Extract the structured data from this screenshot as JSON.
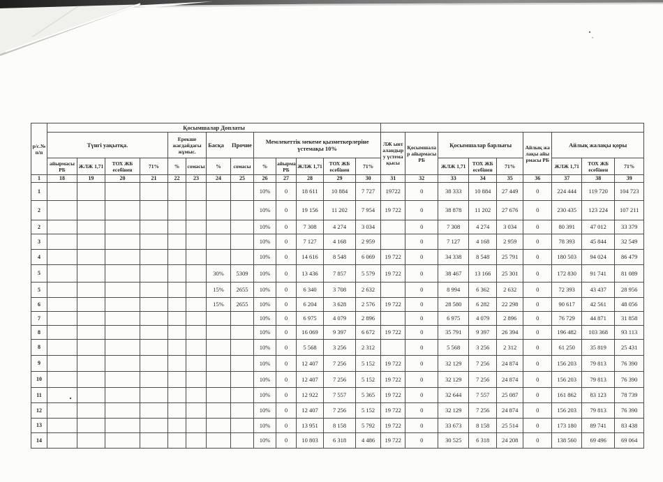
{
  "table": {
    "header": {
      "row_no": "р/с.№ п/п",
      "additions_group": "Қосымшалар Доплаты",
      "night_work": "Түнгі уақытқа.",
      "special_conditions": "Ерекше жағдайдағы жұмыс.",
      "other": "Басқа Прочие",
      "state_bonus": "Мемлекеттік мекеме қызметкерлеріне үстемақы 10%",
      "lj_bonus": "ЛЖ ынталандыру үстемақысы",
      "additions_diff_rb": "Қосымшалар айырмасы РБ",
      "additions_total": "Қосымшалар барлығы",
      "salary_diff_rb": "Айлық жалақы айырмасы РБ",
      "salary_fund": "Айлық жалақы қоры",
      "subheaders": [
        "айырмасы РБ",
        "ЖЛЖ 1,71",
        "ТОХ ЖБ есебінен",
        "71%",
        "%",
        "сомасы",
        "%",
        "сомасы",
        "%",
        "айырмасы РБ",
        "ЖЛЖ 1,71",
        "ТОХ ЖБ есебінен",
        "71%",
        "ЖЛЖ 1,71",
        "ТОХ ЖБ есебінен",
        "71%",
        "ЖЛЖ 1,71",
        "ТОХ ЖБ есебінен",
        "71%"
      ],
      "column_numbers": [
        "1",
        "18",
        "19",
        "20",
        "21",
        "22",
        "23",
        "24",
        "25",
        "26",
        "27",
        "28",
        "29",
        "30",
        "31",
        "32",
        "33",
        "34",
        "35",
        "36",
        "37",
        "38",
        "39"
      ]
    },
    "rows": [
      [
        "1",
        "",
        "",
        "",
        "",
        "",
        "",
        "",
        "",
        "10%",
        "0",
        "18 611",
        "10 884",
        "7 727",
        "19722",
        "0",
        "38 333",
        "10 884",
        "27 449",
        "0",
        "224 444",
        "119 720",
        "104 723"
      ],
      [
        "2",
        "",
        "",
        "",
        "",
        "",
        "",
        "",
        "",
        "10%",
        "0",
        "19 156",
        "11 202",
        "7 954",
        "19 722",
        "0",
        "38 878",
        "11 202",
        "27 676",
        "0",
        "230 435",
        "123 224",
        "107 211"
      ],
      [
        "2",
        "",
        "",
        "",
        "",
        "",
        "",
        "",
        "",
        "10%",
        "0",
        "7 308",
        "4 274",
        "3 034",
        "",
        "0",
        "7 308",
        "4 274",
        "3 034",
        "0",
        "80 391",
        "47 012",
        "33 379"
      ],
      [
        "3",
        "",
        "",
        "",
        "",
        "",
        "",
        "",
        "",
        "10%",
        "0",
        "7 127",
        "4 168",
        "2 959",
        "",
        "0",
        "7 127",
        "4 168",
        "2 959",
        "0",
        "78 393",
        "45 844",
        "32 549"
      ],
      [
        "4",
        "",
        "",
        "",
        "",
        "",
        "",
        "",
        "",
        "10%",
        "0",
        "14 616",
        "8 548",
        "6 069",
        "19 722",
        "0",
        "34 338",
        "8 548",
        "25 791",
        "0",
        "180 503",
        "94 024",
        "86 479"
      ],
      [
        "5",
        "",
        "",
        "",
        "",
        "",
        "",
        "30%",
        "5309",
        "10%",
        "0",
        "13 436",
        "7 857",
        "5 579",
        "19 722",
        "0",
        "38 467",
        "13 166",
        "25 301",
        "0",
        "172 830",
        "91 741",
        "81 089"
      ],
      [
        "5",
        "",
        "",
        "",
        "",
        "",
        "",
        "15%",
        "2655",
        "10%",
        "0",
        "6 340",
        "3 708",
        "2 632",
        "",
        "0",
        "8 994",
        "6 362",
        "2 632",
        "0",
        "72 393",
        "43 437",
        "28 956"
      ],
      [
        "6",
        "",
        "",
        "",
        "",
        "",
        "",
        "15%",
        "2655",
        "10%",
        "0",
        "6 204",
        "3 628",
        "2 576",
        "19 722",
        "0",
        "28 580",
        "6 282",
        "22 298",
        "0",
        "90 617",
        "42 561",
        "48 056"
      ],
      [
        "7",
        "",
        "",
        "",
        "",
        "",
        "",
        "",
        "",
        "10%",
        "0",
        "6 975",
        "4 079",
        "2 896",
        "",
        "0",
        "6 975",
        "4 079",
        "2 896",
        "0",
        "76 729",
        "44 871",
        "31 858"
      ],
      [
        "8",
        "",
        "",
        "",
        "",
        "",
        "",
        "",
        "",
        "10%",
        "0",
        "16 069",
        "9 397",
        "6 672",
        "19 722",
        "0",
        "35 791",
        "9 397",
        "26 394",
        "0",
        "196 482",
        "103 368",
        "93 113"
      ],
      [
        "8",
        "",
        "",
        "",
        "",
        "",
        "",
        "",
        "",
        "10%",
        "0",
        "5 568",
        "3 256",
        "2 312",
        "",
        "0",
        "5 568",
        "3 256",
        "2 312",
        "0",
        "61 250",
        "35 819",
        "25 431"
      ],
      [
        "9",
        "",
        "",
        "",
        "",
        "",
        "",
        "",
        "",
        "10%",
        "0",
        "12 407",
        "7 256",
        "5 152",
        "19 722",
        "0",
        "32 129",
        "7 256",
        "24 874",
        "0",
        "156 203",
        "79 813",
        "76 390"
      ],
      [
        "10",
        "",
        "",
        "",
        "",
        "",
        "",
        "",
        "",
        "10%",
        "0",
        "12 407",
        "7 256",
        "5 152",
        "19 722",
        "0",
        "32 129",
        "7 256",
        "24 874",
        "0",
        "156 203",
        "79 813",
        "76 390"
      ],
      [
        "11",
        "",
        "",
        "",
        "",
        "",
        "",
        "",
        "",
        "10%",
        "0",
        "12 922",
        "7 557",
        "5 365",
        "19 722",
        "0",
        "32 644",
        "7 557",
        "25 087",
        "0",
        "161 862",
        "83 123",
        "78 739"
      ],
      [
        "12",
        "",
        "",
        "",
        "",
        "",
        "",
        "",
        "",
        "10%",
        "0",
        "12 407",
        "7 256",
        "5 152",
        "19 722",
        "0",
        "32 129",
        "7 256",
        "24 874",
        "0",
        "156 203",
        "79 813",
        "76 390"
      ],
      [
        "13",
        "",
        "",
        "",
        "",
        "",
        "",
        "",
        "",
        "10%",
        "0",
        "13 951",
        "8 158",
        "5 792",
        "19 722",
        "0",
        "33 673",
        "8 158",
        "25 514",
        "0",
        "173 180",
        "89 741",
        "83 438"
      ],
      [
        "14",
        "",
        "",
        "",
        "",
        "",
        "",
        "",
        "",
        "10%",
        "0",
        "10 803",
        "6 318",
        "4 486",
        "19 722",
        "0",
        "30 525",
        "6 318",
        "24 208",
        "0",
        "138 560",
        "69 496",
        "69 064"
      ]
    ]
  }
}
